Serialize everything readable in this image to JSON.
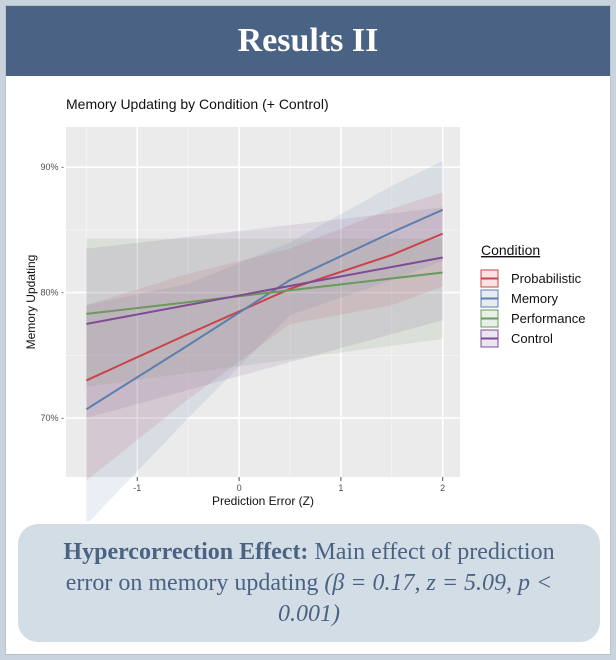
{
  "slide": {
    "title": "Results II",
    "summary": {
      "lead": "Hypercorrection Effect:",
      "body": " Main effect of prediction error on memory updating ",
      "stat": "(β = 0.17, z = 5.09, p < 0.001)"
    }
  },
  "chart_data": {
    "type": "line",
    "title": "Memory Updating by Condition (+ Control)",
    "xlabel": "Prediction Error (Z)",
    "ylabel": "Memory Updating",
    "xlim": [
      -1.7,
      2.17
    ],
    "ylim": [
      65.3,
      93.2
    ],
    "xticks": [
      -1,
      0,
      1,
      2
    ],
    "xtick_labels": [
      "-1",
      "0",
      "1",
      "2"
    ],
    "yticks": [
      70,
      80,
      90
    ],
    "ytick_labels": [
      "70% -",
      "80% -",
      "90% -"
    ],
    "grid": true,
    "legend": {
      "title": "Condition",
      "position": "right"
    },
    "series": [
      {
        "name": "Probabilistic",
        "color": "#c9444a",
        "x": [
          -1.5,
          -0.5,
          0.5,
          1.5,
          2.0
        ],
        "y": [
          73.0,
          76.7,
          80.3,
          83.0,
          84.7
        ],
        "lower": [
          65.0,
          71.5,
          77.5,
          79.0,
          80.5
        ],
        "upper": [
          79.0,
          81.5,
          83.5,
          86.7,
          88.0
        ]
      },
      {
        "name": "Memory",
        "color": "#5b7fae",
        "x": [
          -1.5,
          -0.5,
          0.5,
          1.5,
          2.0
        ],
        "y": [
          70.7,
          75.8,
          81.0,
          84.8,
          86.6
        ],
        "lower": [
          61.5,
          70.0,
          78.2,
          81.0,
          82.5
        ],
        "upper": [
          79.0,
          80.7,
          84.0,
          88.5,
          90.5
        ]
      },
      {
        "name": "Performance",
        "color": "#6a9a5c",
        "x": [
          -1.5,
          2.0
        ],
        "y": [
          78.3,
          81.6
        ],
        "lower": [
          72.5,
          76.3
        ],
        "upper": [
          84.3,
          84.3
        ]
      },
      {
        "name": "Control",
        "color": "#7f4b95",
        "x": [
          -1.5,
          2.0
        ],
        "y": [
          77.5,
          82.8
        ],
        "lower": [
          70.0,
          77.8
        ],
        "upper": [
          83.5,
          86.8
        ]
      }
    ]
  }
}
